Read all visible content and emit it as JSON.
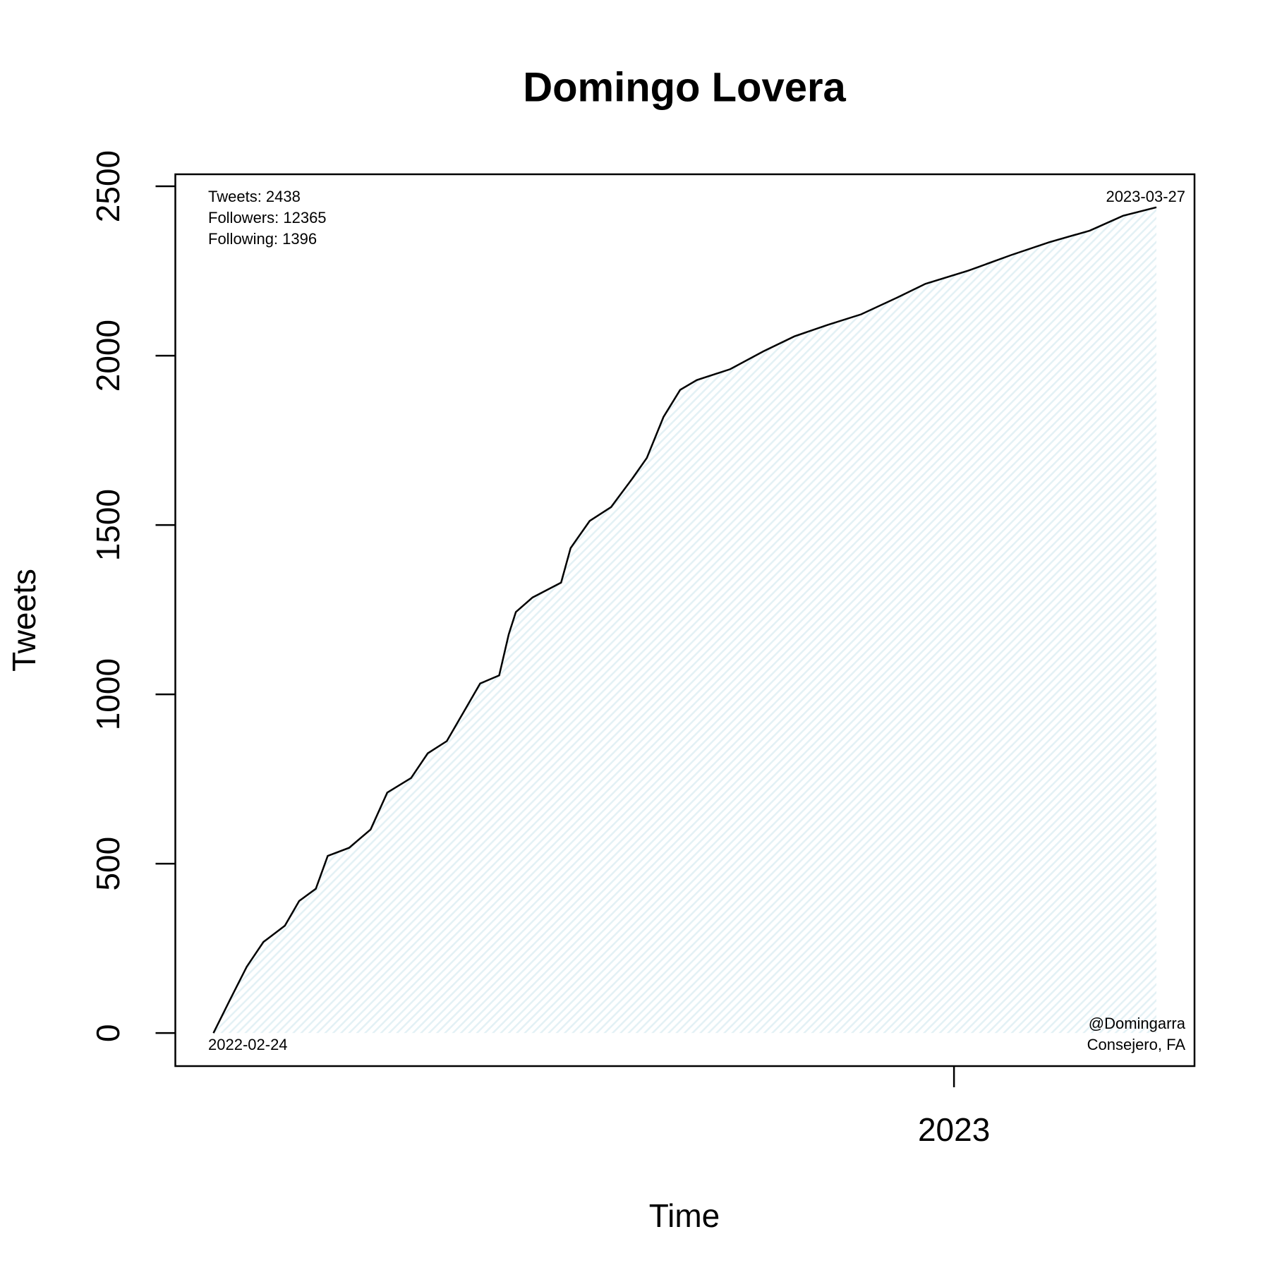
{
  "chart_data": {
    "type": "line",
    "title": "Domingo Lovera",
    "x_label": "Time",
    "y_label": "Tweets",
    "x": [
      "2022-02-24",
      "2022-03-03",
      "2022-03-10",
      "2022-03-17",
      "2022-03-26",
      "2022-04-01",
      "2022-04-08",
      "2022-04-13",
      "2022-04-22",
      "2022-05-01",
      "2022-05-08",
      "2022-05-18",
      "2022-05-25",
      "2022-06-02",
      "2022-06-09",
      "2022-06-16",
      "2022-06-24",
      "2022-06-28",
      "2022-07-01",
      "2022-07-08",
      "2022-07-20",
      "2022-07-24",
      "2022-08-01",
      "2022-08-10",
      "2022-08-19",
      "2022-08-25",
      "2022-09-01",
      "2022-09-08",
      "2022-09-15",
      "2022-09-29",
      "2022-10-13",
      "2022-10-26",
      "2022-11-09",
      "2022-11-23",
      "2022-12-08",
      "2022-12-20",
      "2023-01-07",
      "2023-01-25",
      "2023-02-10",
      "2023-02-27",
      "2023-03-13",
      "2023-03-27"
    ],
    "series": [
      {
        "name": "Tweets",
        "color": "#000000",
        "fill": "#e3f1f5",
        "values": [
          0,
          99,
          196,
          269,
          317,
          390,
          426,
          523,
          547,
          601,
          710,
          753,
          826,
          862,
          947,
          1032,
          1056,
          1177,
          1243,
          1286,
          1330,
          1432,
          1512,
          1553,
          1638,
          1698,
          1819,
          1899,
          1928,
          1960,
          2013,
          2057,
          2091,
          2122,
          2171,
          2212,
          2251,
          2297,
          2335,
          2369,
          2413,
          2438
        ]
      }
    ],
    "xlim": [
      "2022-02-08",
      "2023-04-12"
    ],
    "xticks": [
      {
        "value": "2023-01-01",
        "label": "2023"
      }
    ],
    "ylim": [
      -97.52,
      2535.52
    ],
    "yticks": [
      0,
      500,
      1000,
      1500,
      2000,
      2500
    ],
    "annotations": {
      "top_left": [
        "Tweets: 2438",
        "Followers: 12365",
        "Following: 1396"
      ],
      "top_right": "2023-03-27",
      "bottom_left": "2022-02-24",
      "bottom_right": [
        "@Domingarra",
        "Consejero, FA"
      ]
    }
  }
}
